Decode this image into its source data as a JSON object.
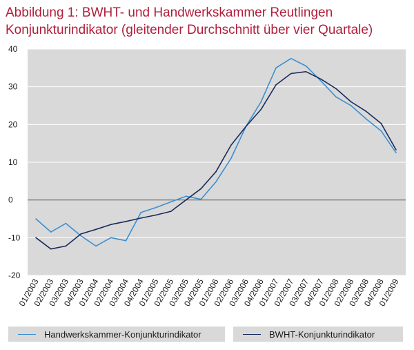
{
  "title_line1": "Abbildung 1: BWHT- und Handwerkskammer  Reutlingen",
  "title_line2": "Konjunkturindikator (gleitender Durchschnitt über vier Quartale)",
  "colors": {
    "title": "#b01e3a",
    "plot_background": "#d9d9d9",
    "hwk_series": "#3b8fd0",
    "bwht_series": "#1b2a5c",
    "zero_line": "#666666"
  },
  "chart_data": {
    "type": "line",
    "title": "",
    "xlabel": "",
    "ylabel": "",
    "ylim": [
      -20,
      40
    ],
    "y_ticks": [
      "40",
      "30",
      "20",
      "10",
      "0",
      "-10",
      "-20"
    ],
    "y_tick_values": [
      40,
      30,
      20,
      10,
      0,
      -10,
      -20
    ],
    "grid": "horizontal",
    "legend_position": "bottom",
    "categories": [
      "01/2003",
      "02/2003",
      "03/2003",
      "04/2003",
      "01/2004",
      "02/2004",
      "03/2004",
      "04/2004",
      "01/2005",
      "02/2005",
      "03/2005",
      "04/2005",
      "01/2006",
      "02/2006",
      "03/2006",
      "04/2006",
      "01/2007",
      "02/2007",
      "03/2007",
      "04/2007",
      "01/2008",
      "02/2008",
      "03/2008",
      "04/2008",
      "01/2009"
    ],
    "series": [
      {
        "name": "Handwerkskammer-Konjunkturindikator",
        "color": "#3b8fd0",
        "values": [
          -5,
          -8.5,
          -6.2,
          -9.5,
          -12.2,
          -10,
          -10.8,
          -3.3,
          -2,
          -0.5,
          1,
          0.2,
          4.8,
          11,
          19.5,
          26,
          35,
          37.5,
          35.5,
          31.5,
          27.3,
          25,
          21.5,
          18.3,
          12.5
        ]
      },
      {
        "name": "BWHT-Konjunkturindikator",
        "color": "#1b2a5c",
        "values": [
          -10,
          -13,
          -12.2,
          -9,
          -7.8,
          -6.5,
          -5.7,
          -4.8,
          -4,
          -3,
          0,
          3,
          7.5,
          14.5,
          19.5,
          24,
          30.5,
          33.5,
          34,
          32,
          29.5,
          26,
          23.5,
          20.3,
          13.3
        ]
      }
    ]
  },
  "legend": [
    {
      "label": "Handwerkskammer-Konjunkturindikator",
      "color": "#3b8fd0"
    },
    {
      "label": "BWHT-Konjunkturindikator",
      "color": "#1b2a5c"
    }
  ]
}
